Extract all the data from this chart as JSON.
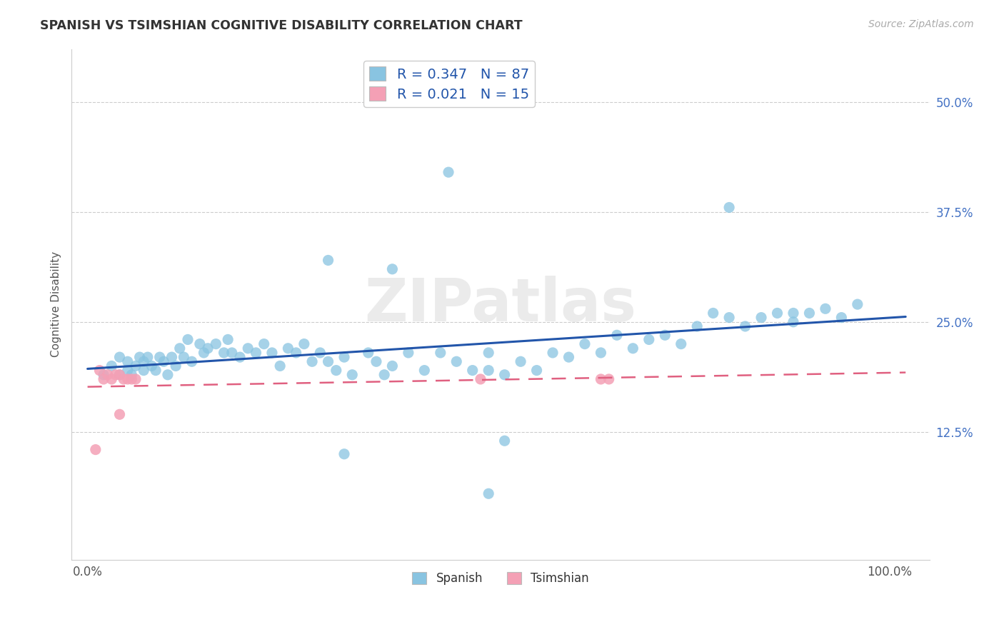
{
  "title": "SPANISH VS TSIMSHIAN COGNITIVE DISABILITY CORRELATION CHART",
  "source": "Source: ZipAtlas.com",
  "ylabel": "Cognitive Disability",
  "xlim": [
    -0.02,
    1.05
  ],
  "ylim": [
    -0.02,
    0.56
  ],
  "xtick_positions": [
    0.0,
    1.0
  ],
  "xtick_labels": [
    "0.0%",
    "100.0%"
  ],
  "ytick_positions": [
    0.125,
    0.25,
    0.375,
    0.5
  ],
  "ytick_labels": [
    "12.5%",
    "25.0%",
    "37.5%",
    "50.0%"
  ],
  "spanish_color": "#89c4e1",
  "tsimshian_color": "#f4a0b5",
  "spanish_line_color": "#2255aa",
  "tsimshian_line_color": "#e06080",
  "legend_label1": "R = 0.347   N = 87",
  "legend_label2": "R = 0.021   N = 15",
  "grid_color": "#cccccc",
  "bg_color": "#ffffff",
  "watermark_color": "#e8e8e8",
  "sp_x": [
    0.02,
    0.03,
    0.04,
    0.04,
    0.05,
    0.05,
    0.055,
    0.06,
    0.065,
    0.07,
    0.07,
    0.075,
    0.08,
    0.085,
    0.09,
    0.095,
    0.1,
    0.105,
    0.11,
    0.115,
    0.12,
    0.125,
    0.13,
    0.14,
    0.145,
    0.15,
    0.16,
    0.17,
    0.175,
    0.18,
    0.19,
    0.2,
    0.21,
    0.22,
    0.23,
    0.24,
    0.25,
    0.26,
    0.27,
    0.28,
    0.29,
    0.3,
    0.31,
    0.32,
    0.33,
    0.35,
    0.36,
    0.37,
    0.38,
    0.4,
    0.42,
    0.44,
    0.46,
    0.48,
    0.5,
    0.5,
    0.52,
    0.54,
    0.56,
    0.58,
    0.6,
    0.62,
    0.64,
    0.66,
    0.68,
    0.7,
    0.72,
    0.74,
    0.76,
    0.78,
    0.8,
    0.82,
    0.84,
    0.86,
    0.88,
    0.9,
    0.92,
    0.94,
    0.96,
    0.52,
    0.3,
    0.38,
    0.45,
    0.8,
    0.88,
    0.5,
    0.32
  ],
  "sp_y": [
    0.19,
    0.2,
    0.19,
    0.21,
    0.195,
    0.205,
    0.19,
    0.2,
    0.21,
    0.195,
    0.205,
    0.21,
    0.2,
    0.195,
    0.21,
    0.205,
    0.19,
    0.21,
    0.2,
    0.22,
    0.21,
    0.23,
    0.205,
    0.225,
    0.215,
    0.22,
    0.225,
    0.215,
    0.23,
    0.215,
    0.21,
    0.22,
    0.215,
    0.225,
    0.215,
    0.2,
    0.22,
    0.215,
    0.225,
    0.205,
    0.215,
    0.205,
    0.195,
    0.21,
    0.19,
    0.215,
    0.205,
    0.19,
    0.2,
    0.215,
    0.195,
    0.215,
    0.205,
    0.195,
    0.215,
    0.195,
    0.19,
    0.205,
    0.195,
    0.215,
    0.21,
    0.225,
    0.215,
    0.235,
    0.22,
    0.23,
    0.235,
    0.225,
    0.245,
    0.26,
    0.255,
    0.245,
    0.255,
    0.26,
    0.25,
    0.26,
    0.265,
    0.255,
    0.27,
    0.115,
    0.32,
    0.31,
    0.42,
    0.38,
    0.26,
    0.055,
    0.1
  ],
  "ts_x": [
    0.01,
    0.015,
    0.02,
    0.025,
    0.03,
    0.035,
    0.04,
    0.04,
    0.045,
    0.05,
    0.055,
    0.06,
    0.49,
    0.64,
    0.65
  ],
  "ts_y": [
    0.105,
    0.195,
    0.185,
    0.19,
    0.185,
    0.19,
    0.19,
    0.145,
    0.185,
    0.185,
    0.185,
    0.185,
    0.185,
    0.185,
    0.185
  ]
}
